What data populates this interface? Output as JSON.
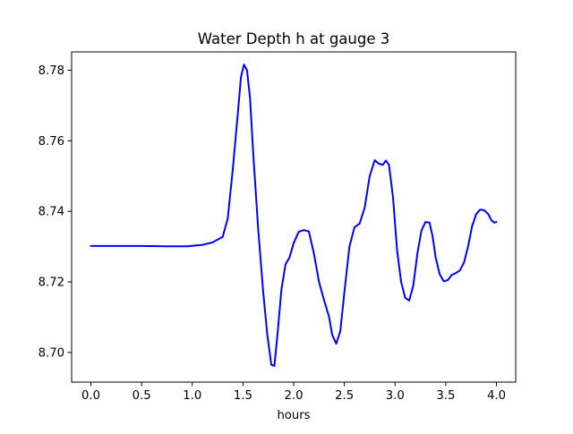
{
  "chart_data": {
    "type": "line",
    "title": "Water Depth h at gauge 3",
    "xlabel": "hours",
    "ylabel": "",
    "xlim": [
      -0.19,
      4.19
    ],
    "ylim": [
      8.6916,
      8.7852
    ],
    "xticks": [
      {
        "value": 0.0,
        "label": "0.0"
      },
      {
        "value": 0.5,
        "label": "0.5"
      },
      {
        "value": 1.0,
        "label": "1.0"
      },
      {
        "value": 1.5,
        "label": "1.5"
      },
      {
        "value": 2.0,
        "label": "2.0"
      },
      {
        "value": 2.5,
        "label": "2.5"
      },
      {
        "value": 3.0,
        "label": "3.0"
      },
      {
        "value": 3.5,
        "label": "3.5"
      },
      {
        "value": 4.0,
        "label": "4.0"
      }
    ],
    "yticks": [
      {
        "value": 8.7,
        "label": "8.70"
      },
      {
        "value": 8.72,
        "label": "8.72"
      },
      {
        "value": 8.74,
        "label": "8.74"
      },
      {
        "value": 8.76,
        "label": "8.76"
      },
      {
        "value": 8.78,
        "label": "8.78"
      }
    ],
    "grid": false,
    "series": [
      {
        "color": "#0000ff",
        "x": [
          0.0,
          0.25,
          0.5,
          0.75,
          0.95,
          1.1,
          1.2,
          1.3,
          1.35,
          1.4,
          1.45,
          1.48,
          1.51,
          1.54,
          1.57,
          1.6,
          1.65,
          1.7,
          1.74,
          1.78,
          1.81,
          1.84,
          1.88,
          1.92,
          1.96,
          2.0,
          2.05,
          2.1,
          2.15,
          2.2,
          2.25,
          2.3,
          2.35,
          2.38,
          2.42,
          2.46,
          2.5,
          2.55,
          2.6,
          2.65,
          2.7,
          2.75,
          2.8,
          2.84,
          2.88,
          2.91,
          2.94,
          2.98,
          3.02,
          3.06,
          3.1,
          3.14,
          3.18,
          3.22,
          3.26,
          3.3,
          3.34,
          3.37,
          3.4,
          3.44,
          3.48,
          3.52,
          3.56,
          3.6,
          3.64,
          3.68,
          3.72,
          3.76,
          3.8,
          3.84,
          3.88,
          3.92,
          3.95,
          3.98,
          4.0
        ],
        "y": [
          8.7302,
          8.7302,
          8.7302,
          8.7301,
          8.7301,
          8.7305,
          8.7312,
          8.7328,
          8.738,
          8.752,
          8.768,
          8.778,
          8.7816,
          8.78,
          8.772,
          8.757,
          8.735,
          8.717,
          8.705,
          8.6965,
          8.6962,
          8.705,
          8.718,
          8.725,
          8.727,
          8.731,
          8.7342,
          8.7347,
          8.7343,
          8.728,
          8.72,
          8.7148,
          8.71,
          8.705,
          8.7025,
          8.706,
          8.717,
          8.73,
          8.7355,
          8.7365,
          8.741,
          8.75,
          8.7545,
          8.7535,
          8.7532,
          8.7544,
          8.7532,
          8.744,
          8.729,
          8.72,
          8.7155,
          8.7147,
          8.719,
          8.728,
          8.7345,
          8.737,
          8.7368,
          8.733,
          8.727,
          8.7222,
          8.7202,
          8.7205,
          8.722,
          8.7225,
          8.7233,
          8.7255,
          8.73,
          8.7358,
          8.7392,
          8.7405,
          8.7403,
          8.7392,
          8.7375,
          8.7368,
          8.737
        ]
      }
    ]
  }
}
